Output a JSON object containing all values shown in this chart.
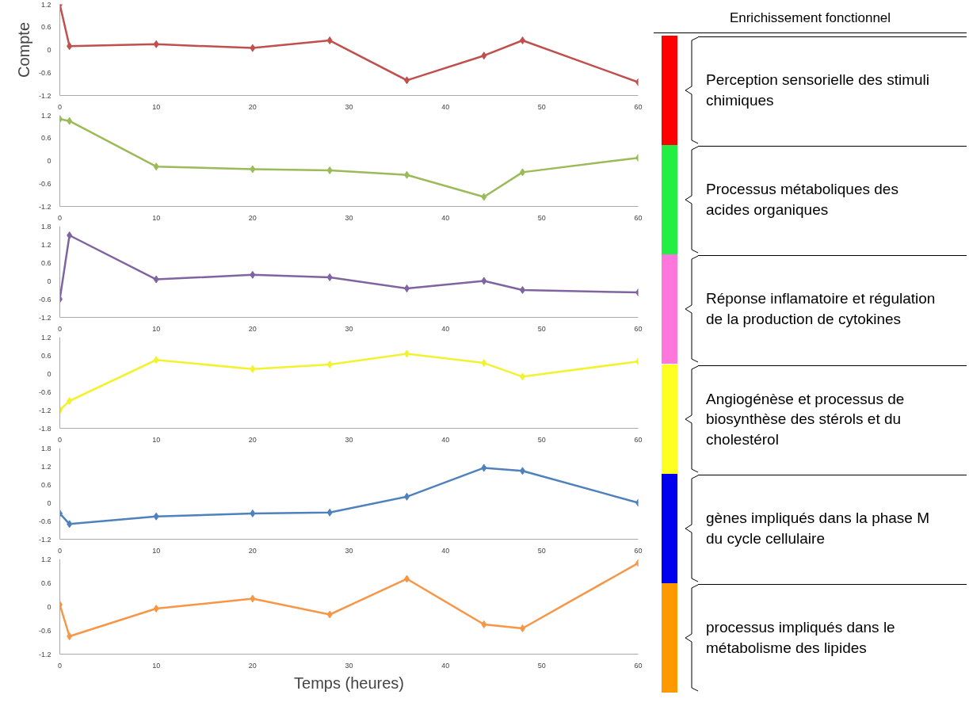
{
  "chart_data": [
    {
      "type": "line",
      "ylabel": "Compte",
      "x": [
        0,
        1,
        10,
        20,
        28,
        36,
        44,
        48,
        60
      ],
      "series": [
        {
          "color": "#c0504d",
          "values": [
            1.2,
            0.1,
            0.15,
            0.05,
            0.25,
            -0.8,
            -0.15,
            0.25,
            -0.85
          ]
        }
      ],
      "xlim": [
        0,
        60
      ],
      "xticks": [
        0,
        10,
        20,
        30,
        40,
        50,
        60
      ],
      "ylim": [
        -1.2,
        1.2
      ],
      "yticks": [
        -1.2,
        -0.6,
        0,
        0.6,
        1.2
      ],
      "marker": "diamond",
      "grid": false
    },
    {
      "type": "line",
      "x": [
        0,
        1,
        10,
        20,
        28,
        36,
        44,
        48,
        60
      ],
      "series": [
        {
          "color": "#9bbb59",
          "values": [
            1.1,
            1.05,
            -0.15,
            -0.22,
            -0.25,
            -0.37,
            -0.95,
            -0.3,
            0.08
          ]
        }
      ],
      "xlim": [
        0,
        60
      ],
      "xticks": [
        0,
        10,
        20,
        30,
        40,
        50,
        60
      ],
      "ylim": [
        -1.2,
        1.2
      ],
      "yticks": [
        -1.2,
        -0.6,
        0,
        0.6,
        1.2
      ],
      "marker": "diamond",
      "grid": false
    },
    {
      "type": "line",
      "x": [
        0,
        1,
        10,
        20,
        28,
        36,
        44,
        48,
        60
      ],
      "series": [
        {
          "color": "#8064a2",
          "values": [
            -0.6,
            1.5,
            0.05,
            0.2,
            0.12,
            -0.25,
            0,
            -0.3,
            -0.38
          ]
        }
      ],
      "xlim": [
        0,
        60
      ],
      "xticks": [
        0,
        10,
        20,
        30,
        40,
        50,
        60
      ],
      "ylim": [
        -1.2,
        1.8
      ],
      "yticks": [
        -1.2,
        -0.6,
        0,
        0.6,
        1.2,
        1.8
      ],
      "marker": "diamond",
      "grid": false
    },
    {
      "type": "line",
      "x": [
        0,
        1,
        10,
        20,
        28,
        36,
        44,
        48,
        60
      ],
      "series": [
        {
          "color": "#f2f230",
          "values": [
            -1.2,
            -0.9,
            0.45,
            0.15,
            0.3,
            0.65,
            0.35,
            -0.1,
            0.4
          ]
        }
      ],
      "xlim": [
        0,
        60
      ],
      "xticks": [
        0,
        10,
        20,
        30,
        40,
        50,
        60
      ],
      "ylim": [
        -1.8,
        1.2
      ],
      "yticks": [
        -1.8,
        -1.2,
        -0.6,
        0,
        0.6,
        1.2
      ],
      "marker": "diamond",
      "grid": false
    },
    {
      "type": "line",
      "x": [
        0,
        1,
        10,
        20,
        28,
        36,
        44,
        48,
        60
      ],
      "series": [
        {
          "color": "#4f81bd",
          "values": [
            -0.35,
            -0.7,
            -0.45,
            -0.35,
            -0.32,
            0.2,
            1.15,
            1.05,
            0
          ]
        }
      ],
      "xlim": [
        0,
        60
      ],
      "xticks": [
        0,
        10,
        20,
        30,
        40,
        50,
        60
      ],
      "ylim": [
        -1.2,
        1.8
      ],
      "yticks": [
        -1.2,
        -0.6,
        0,
        0.6,
        1.2,
        1.8
      ],
      "marker": "diamond",
      "grid": false
    },
    {
      "type": "line",
      "xlabel": "Temps (heures)",
      "x": [
        0,
        1,
        10,
        20,
        28,
        36,
        44,
        48,
        60
      ],
      "series": [
        {
          "color": "#f79646",
          "values": [
            0.05,
            -0.75,
            -0.05,
            0.2,
            -0.2,
            0.7,
            -0.45,
            -0.55,
            1.1
          ]
        }
      ],
      "xlim": [
        0,
        60
      ],
      "xticks": [
        0,
        10,
        20,
        30,
        40,
        50,
        60
      ],
      "ylim": [
        -1.2,
        1.2
      ],
      "yticks": [
        -1.2,
        -0.6,
        0,
        0.6,
        1.2
      ],
      "marker": "diamond",
      "grid": false
    },
    {
      "type": "other",
      "title": "Enrichissement fonctionnel",
      "annotations": [
        "Perception sensorielle des stimuli chimiques",
        "Processus métaboliques des acides organiques",
        "Réponse inflamatoire et régulation de la production de cytokines",
        "Angiogénèse et processus de biosynthèse des stérols et du cholestérol",
        "gènes impliqués dans la phase M du cycle cellulaire",
        "processus impliqués dans le métabolisme des lipides"
      ],
      "colors": [
        "#ff0000",
        "#22ee44",
        "#ff77dd",
        "#ffff22",
        "#0000ee",
        "#ff9900"
      ]
    }
  ]
}
